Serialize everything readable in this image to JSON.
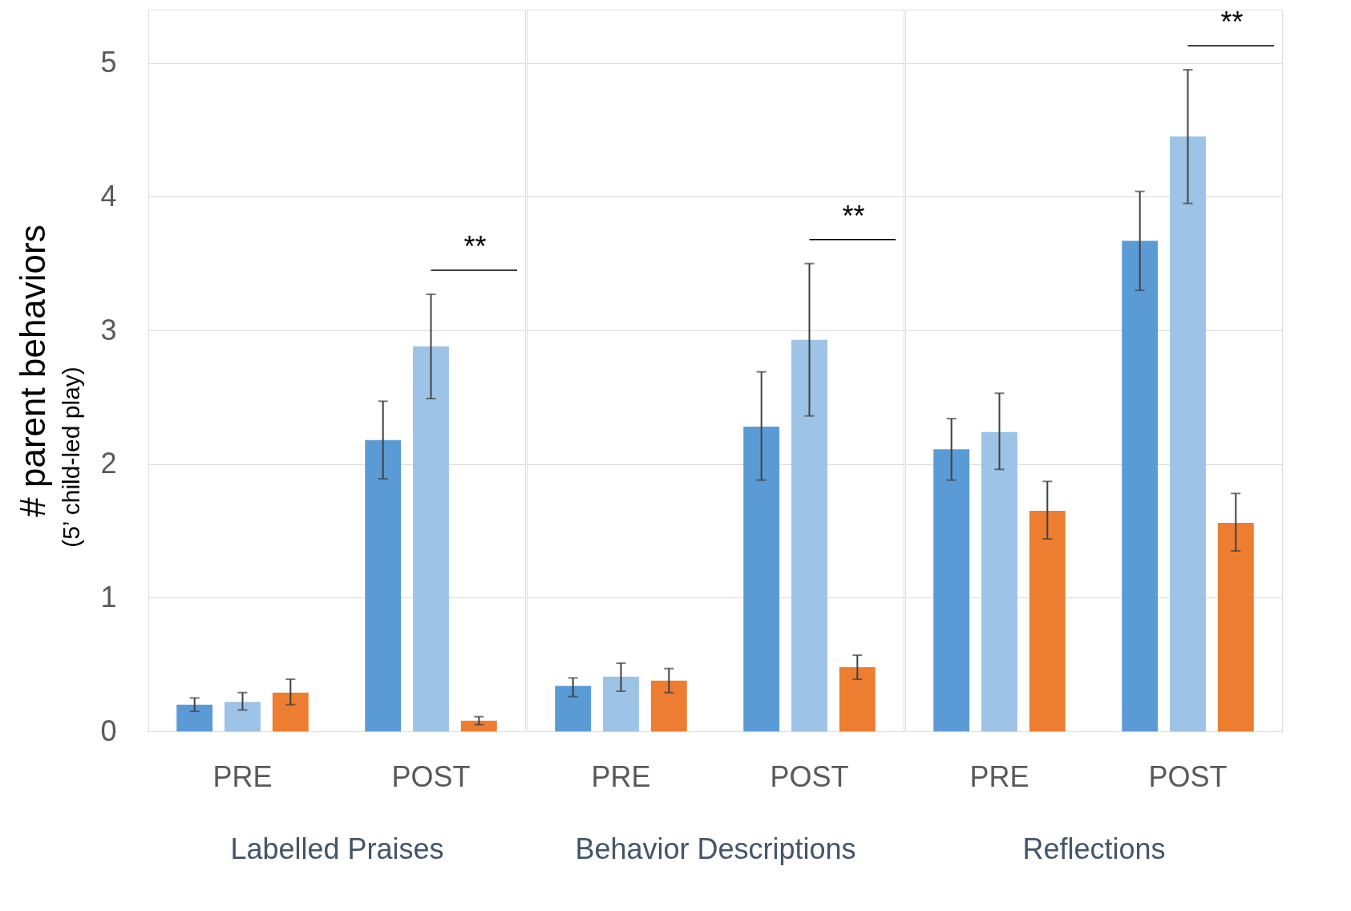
{
  "chart_data": [
    {
      "type": "bar",
      "categories": [
        "PRE",
        "POST"
      ],
      "xlabel": "Labelled Praises",
      "ylabel": "# parent behaviors",
      "ylim": [
        0,
        5.4
      ],
      "yticks": [
        0,
        1,
        2,
        3,
        4,
        5
      ],
      "grid": "y",
      "series": [
        {
          "color": "#5b9bd5",
          "values": [
            0.2,
            2.18
          ],
          "errors": [
            [
              0.15,
              0.25
            ],
            [
              1.89,
              2.47
            ]
          ]
        },
        {
          "color": "#9dc3e6",
          "values": [
            0.22,
            2.88
          ],
          "errors": [
            [
              0.16,
              0.29
            ],
            [
              2.49,
              3.27
            ]
          ]
        },
        {
          "color": "#ed7d31",
          "values": [
            0.29,
            0.08
          ],
          "errors": [
            [
              0.2,
              0.39
            ],
            [
              0.05,
              0.11
            ]
          ]
        }
      ],
      "annotations": [
        "(5’ child-led play)",
        "**"
      ]
    },
    {
      "type": "bar",
      "categories": [
        "PRE",
        "POST"
      ],
      "xlabel": "Behavior Descriptions",
      "ylim": [
        0,
        5.4
      ],
      "yticks": [
        0,
        1,
        2,
        3,
        4,
        5
      ],
      "grid": "y",
      "tick_labels": "x",
      "series": [
        {
          "color": "#5b9bd5",
          "values": [
            0.34,
            2.28
          ],
          "errors": [
            [
              0.26,
              0.4
            ],
            [
              1.88,
              2.69
            ]
          ]
        },
        {
          "color": "#9dc3e6",
          "values": [
            0.41,
            2.93
          ],
          "errors": [
            [
              0.3,
              0.51
            ],
            [
              2.36,
              3.5
            ]
          ]
        },
        {
          "color": "#ed7d31",
          "values": [
            0.38,
            0.48
          ],
          "errors": [
            [
              0.29,
              0.47
            ],
            [
              0.39,
              0.57
            ]
          ]
        }
      ],
      "annotations": [
        "**"
      ]
    },
    {
      "type": "bar",
      "categories": [
        "PRE",
        "POST"
      ],
      "xlabel": "Reflections",
      "ylim": [
        0,
        5.4
      ],
      "yticks": [
        0,
        1,
        2,
        3,
        4,
        5
      ],
      "grid": "y",
      "tick_labels": "x",
      "series": [
        {
          "color": "#5b9bd5",
          "values": [
            2.11,
            3.67
          ],
          "errors": [
            [
              1.88,
              2.34
            ],
            [
              3.3,
              4.04
            ]
          ]
        },
        {
          "color": "#9dc3e6",
          "values": [
            2.24,
            4.45
          ],
          "errors": [
            [
              1.96,
              2.53
            ],
            [
              3.95,
              4.95
            ]
          ]
        },
        {
          "color": "#ed7d31",
          "values": [
            1.65,
            1.56
          ],
          "errors": [
            [
              1.44,
              1.87
            ],
            [
              1.35,
              1.78
            ]
          ]
        }
      ],
      "annotations": [
        "**"
      ]
    }
  ]
}
